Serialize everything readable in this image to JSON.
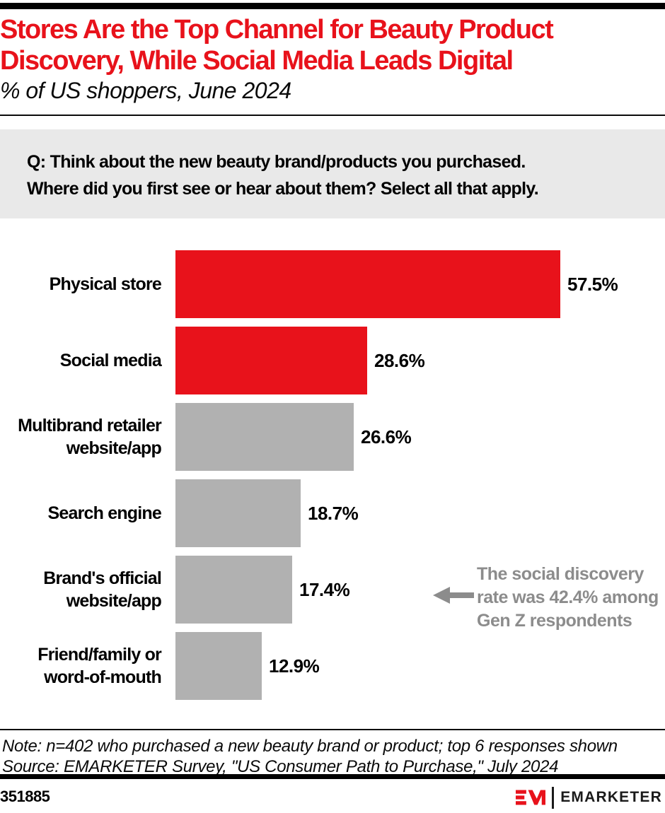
{
  "header": {
    "title_lines": [
      "Stores Are the Top Channel for Beauty Product",
      "Discovery, While Social Media Leads Digital"
    ],
    "subtitle": "% of US shoppers, June 2024"
  },
  "question": {
    "lines": [
      "Q: Think about the new beauty brand/products you purchased.",
      "Where did you first see or hear about them? Select all that apply."
    ]
  },
  "chart_data": {
    "type": "bar",
    "orientation": "horizontal",
    "categories": [
      "Physical store",
      "Social media",
      "Multibrand retailer\nwebsite/app",
      "Search engine",
      "Brand's official\nwebsite/app",
      "Friend/family or\nword-of-mouth"
    ],
    "values": [
      57.5,
      28.6,
      26.6,
      18.7,
      17.4,
      12.9
    ],
    "value_labels": [
      "57.5%",
      "28.6%",
      "26.6%",
      "18.7%",
      "17.4%",
      "12.9%"
    ],
    "bar_colors": [
      "#E8121B",
      "#E8121B",
      "#B1B1B1",
      "#B1B1B1",
      "#B1B1B1",
      "#B1B1B1"
    ],
    "xlim": [
      0,
      62
    ],
    "grid": false,
    "legend": "none",
    "annotation": {
      "lines": [
        "The social discovery",
        "rate was 42.4% among",
        "Gen Z respondents"
      ],
      "points_to": "Social media",
      "color": "#8C8C8C"
    }
  },
  "footer": {
    "note_lines": [
      "Note: n=402 who purchased a new beauty brand or product; top 6 responses shown",
      "Source: EMARKETER Survey, \"US Consumer Path to Purchase,\" July 2024"
    ],
    "chart_id": "351885",
    "brand": "EMARKETER"
  },
  "colors": {
    "accent_red": "#E8121B",
    "bar_gray": "#B1B1B1",
    "question_bg": "#E9E9E9",
    "annotation_gray": "#8C8C8C",
    "black": "#000000"
  }
}
